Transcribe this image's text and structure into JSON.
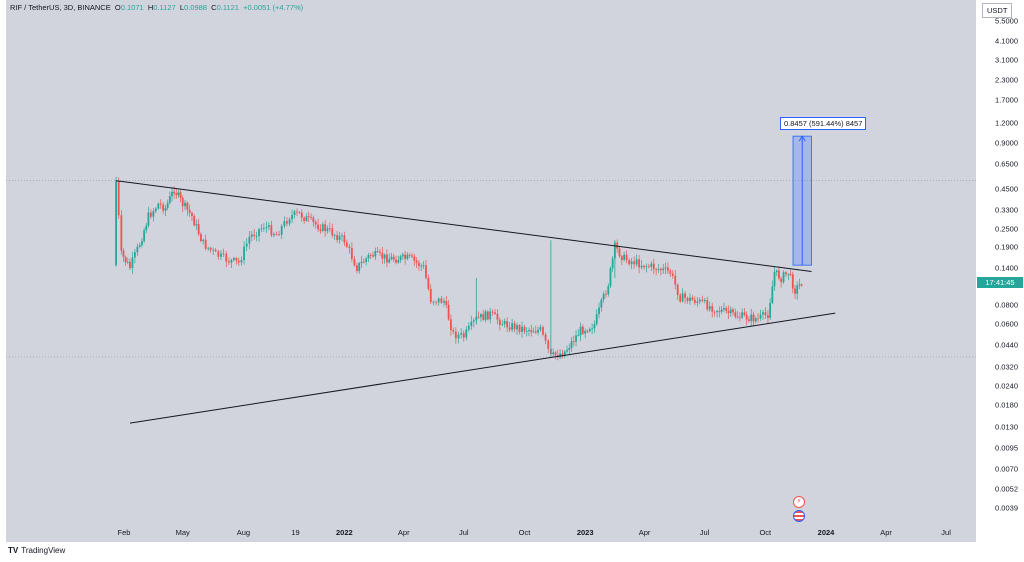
{
  "header": {
    "symbol": "RIF / TetherUS, 3D, BINANCE",
    "o_label": "O",
    "o_value": "0.1071",
    "h_label": "H",
    "h_value": "0.1127",
    "l_label": "L",
    "l_value": "0.0988",
    "c_label": "C",
    "c_value": "0.1121",
    "change": "+0.0051 (+4.77%)"
  },
  "price_scale": {
    "currency": "USDT",
    "last_price_tag": "17:41:45"
  },
  "measure": {
    "label": "0.8457 (591.44%) 8457"
  },
  "footer": {
    "logo": "TV",
    "brand": "TradingView"
  },
  "events": {
    "lightning_icon": "lightning-icon",
    "flag_icon": "us-flag-icon"
  },
  "colors": {
    "up": "#26a69a",
    "down": "#ef5350",
    "measure": "#2962ff"
  },
  "chart_data": {
    "type": "candlestick",
    "scale": "log",
    "yticks": [
      "5.5000",
      "4.1000",
      "3.1000",
      "2.3000",
      "1.7000",
      "1.2000",
      "0.9000",
      "0.6500",
      "0.4500",
      "0.3300",
      "0.2500",
      "0.1900",
      "0.1400",
      "0.0800",
      "0.0600",
      "0.0440",
      "0.0320",
      "0.0240",
      "0.0180",
      "0.0130",
      "0.0095",
      "0.0070",
      "0.0052",
      "0.0039"
    ],
    "xticks": [
      {
        "label": "Feb",
        "date": "2021-02-01",
        "bold": false
      },
      {
        "label": "May",
        "date": "2021-05-01",
        "bold": false
      },
      {
        "label": "Aug",
        "date": "2021-08-01",
        "bold": false
      },
      {
        "label": "19",
        "date": "2021-10-19",
        "bold": false
      },
      {
        "label": "2022",
        "date": "2022-01-01",
        "bold": true
      },
      {
        "label": "Apr",
        "date": "2022-04-01",
        "bold": false
      },
      {
        "label": "Jul",
        "date": "2022-07-01",
        "bold": false
      },
      {
        "label": "Oct",
        "date": "2022-10-01",
        "bold": false
      },
      {
        "label": "2023",
        "date": "2023-01-01",
        "bold": true
      },
      {
        "label": "Apr",
        "date": "2023-04-01",
        "bold": false
      },
      {
        "label": "Jul",
        "date": "2023-07-01",
        "bold": false
      },
      {
        "label": "Oct",
        "date": "2023-10-01",
        "bold": false
      },
      {
        "label": "2024",
        "date": "2024-01-01",
        "bold": true
      },
      {
        "label": "Apr",
        "date": "2024-04-01",
        "bold": false
      },
      {
        "label": "Jul",
        "date": "2024-07-01",
        "bold": false
      }
    ],
    "price_path": [
      {
        "date": "2021-01-15",
        "price": 0.145
      },
      {
        "date": "2021-01-20",
        "price": 0.51
      },
      {
        "date": "2021-01-28",
        "price": 0.17
      },
      {
        "date": "2021-02-10",
        "price": 0.14
      },
      {
        "date": "2021-02-25",
        "price": 0.2
      },
      {
        "date": "2021-03-10",
        "price": 0.3
      },
      {
        "date": "2021-03-25",
        "price": 0.36
      },
      {
        "date": "2021-04-05",
        "price": 0.34
      },
      {
        "date": "2021-04-18",
        "price": 0.45
      },
      {
        "date": "2021-05-01",
        "price": 0.36
      },
      {
        "date": "2021-05-15",
        "price": 0.3
      },
      {
        "date": "2021-06-01",
        "price": 0.2
      },
      {
        "date": "2021-06-20",
        "price": 0.17
      },
      {
        "date": "2021-07-10",
        "price": 0.155
      },
      {
        "date": "2021-07-25",
        "price": 0.15
      },
      {
        "date": "2021-08-10",
        "price": 0.22
      },
      {
        "date": "2021-09-01",
        "price": 0.26
      },
      {
        "date": "2021-09-20",
        "price": 0.23
      },
      {
        "date": "2021-10-10",
        "price": 0.3
      },
      {
        "date": "2021-10-25",
        "price": 0.31
      },
      {
        "date": "2021-11-15",
        "price": 0.27
      },
      {
        "date": "2021-12-10",
        "price": 0.24
      },
      {
        "date": "2022-01-01",
        "price": 0.21
      },
      {
        "date": "2022-01-20",
        "price": 0.14
      },
      {
        "date": "2022-02-10",
        "price": 0.17
      },
      {
        "date": "2022-03-10",
        "price": 0.16
      },
      {
        "date": "2022-04-10",
        "price": 0.16
      },
      {
        "date": "2022-05-01",
        "price": 0.14
      },
      {
        "date": "2022-05-12",
        "price": 0.087
      },
      {
        "date": "2022-06-01",
        "price": 0.085
      },
      {
        "date": "2022-06-15",
        "price": 0.052
      },
      {
        "date": "2022-07-01",
        "price": 0.05
      },
      {
        "date": "2022-07-20",
        "price": 0.065
      },
      {
        "date": "2022-08-10",
        "price": 0.07
      },
      {
        "date": "2022-09-01",
        "price": 0.06
      },
      {
        "date": "2022-10-01",
        "price": 0.056
      },
      {
        "date": "2022-10-25",
        "price": 0.055
      },
      {
        "date": "2022-11-10",
        "price": 0.037
      },
      {
        "date": "2022-12-01",
        "price": 0.04
      },
      {
        "date": "2022-12-25",
        "price": 0.055
      },
      {
        "date": "2023-01-15",
        "price": 0.06
      },
      {
        "date": "2023-02-05",
        "price": 0.11
      },
      {
        "date": "2023-02-15",
        "price": 0.19
      },
      {
        "date": "2023-03-01",
        "price": 0.16
      },
      {
        "date": "2023-03-20",
        "price": 0.15
      },
      {
        "date": "2023-04-15",
        "price": 0.14
      },
      {
        "date": "2023-05-10",
        "price": 0.13
      },
      {
        "date": "2023-05-25",
        "price": 0.09
      },
      {
        "date": "2023-06-20",
        "price": 0.085
      },
      {
        "date": "2023-07-20",
        "price": 0.075
      },
      {
        "date": "2023-08-20",
        "price": 0.068
      },
      {
        "date": "2023-09-20",
        "price": 0.065
      },
      {
        "date": "2023-10-05",
        "price": 0.07
      },
      {
        "date": "2023-10-15",
        "price": 0.13
      },
      {
        "date": "2023-10-25",
        "price": 0.12
      },
      {
        "date": "2023-11-05",
        "price": 0.13
      },
      {
        "date": "2023-11-15",
        "price": 0.1
      },
      {
        "date": "2023-11-25",
        "price": 0.112
      }
    ],
    "trendlines": [
      {
        "name": "descending-resistance",
        "from": {
          "date": "2021-01-20",
          "price": 0.51
        },
        "to": {
          "date": "2023-12-10",
          "price": 0.132
        }
      },
      {
        "name": "ascending-support",
        "from": {
          "date": "2021-02-10",
          "price": 0.0138
        },
        "to": {
          "date": "2024-01-15",
          "price": 0.071
        }
      }
    ],
    "measure_box": {
      "from_date": "2023-11-12",
      "to_date": "2023-12-10",
      "low": 0.145,
      "high": 0.99
    },
    "horizontal_lines": [
      0.51,
      0.037
    ],
    "grid": false
  }
}
